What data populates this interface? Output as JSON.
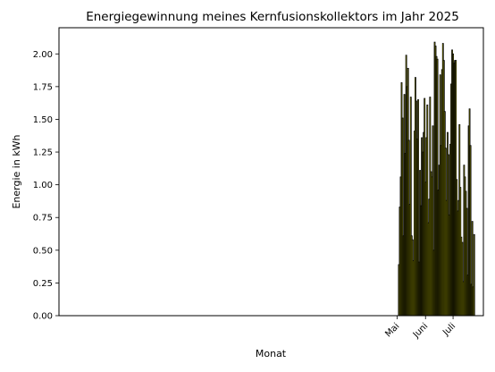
{
  "chart_data": {
    "type": "bar",
    "title": "Energiegewinnung meines Kernfusionskollektors im Jahr 2025",
    "xlabel": "Monat",
    "ylabel": "Energie in kWh",
    "start_date": "2025-05-03",
    "x_ticks": [
      {
        "date": "2025-05-01",
        "label": "Mai"
      },
      {
        "date": "2025-06-01",
        "label": "Juni"
      },
      {
        "date": "2025-07-01",
        "label": "Juli"
      }
    ],
    "x_range": [
      "2024-04-28",
      "2025-08-03"
    ],
    "ylim": [
      0,
      2.2
    ],
    "y_ticks": [
      0.0,
      0.25,
      0.5,
      0.75,
      1.0,
      1.25,
      1.5,
      1.75,
      2.0
    ],
    "grid": false,
    "bar_color": "#ffff00",
    "edge_color": "#000000",
    "values": [
      0.39,
      0.83,
      1.06,
      1.78,
      1.51,
      0.61,
      1.69,
      1.24,
      1.99,
      1.75,
      1.89,
      1.34,
      0.85,
      1.67,
      0.61,
      0.58,
      0.42,
      1.41,
      1.82,
      1.64,
      1.35,
      1.65,
      0.41,
      1.11,
      0.84,
      1.36,
      1.25,
      1.4,
      1.66,
      1.02,
      1.36,
      1.61,
      0.71,
      0.89,
      1.67,
      1.1,
      1.06,
      1.45,
      0.5,
      2.09,
      2.06,
      1.98,
      1.96,
      0.96,
      1.15,
      1.84,
      1.3,
      1.88,
      2.08,
      1.95,
      1.56,
      1.28,
      0.88,
      1.4,
      1.23,
      0.77,
      1.31,
      1.77,
      2.03,
      2.0,
      1.93,
      1.95,
      1.95,
      1.04,
      0.8,
      0.88,
      1.46,
      0.98,
      0.6,
      0.56,
      0.26,
      1.15,
      1.06,
      0.95,
      0.82,
      0.31,
      1.45,
      1.58,
      1.3,
      0.24,
      0.72,
      0.22,
      0.62
    ]
  }
}
